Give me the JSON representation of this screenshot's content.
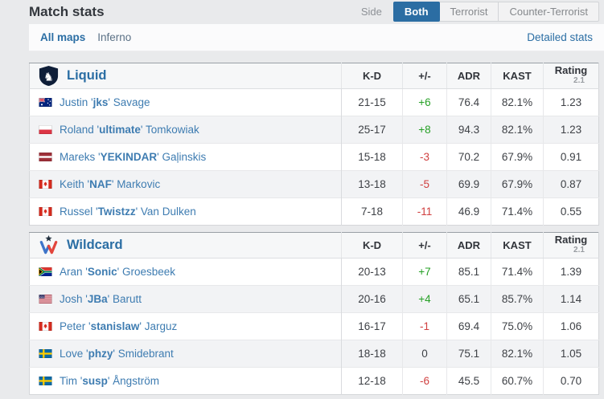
{
  "page": {
    "title": "Match stats"
  },
  "side_filter": {
    "label": "Side",
    "tabs": [
      {
        "label": "Both",
        "active": true
      },
      {
        "label": "Terrorist",
        "active": false
      },
      {
        "label": "Counter-Terrorist",
        "active": false
      }
    ]
  },
  "maps_bar": {
    "all_maps": "All maps",
    "map": "Inferno",
    "detailed": "Detailed stats"
  },
  "columns": {
    "kd": "K-D",
    "plusminus": "+/-",
    "adr": "ADR",
    "kast": "KAST",
    "rating": "Rating",
    "rating_version": "2.1"
  },
  "colors": {
    "accent_blue": "#2b6da3",
    "link_blue": "#2b6ea4",
    "player_link_blue": "#3e7cb1",
    "positive_green": "#26a026",
    "negative_red": "#d04040"
  },
  "teams": [
    {
      "name": "Liquid",
      "logo": "liquid",
      "players": [
        {
          "flag": "au",
          "prefix": "Justin '",
          "nick": "jks",
          "suffix": "' Savage",
          "kd": "21-15",
          "diff": "+6",
          "trend": "pos",
          "adr": "76.4",
          "kast": "82.1%",
          "rating": "1.23"
        },
        {
          "flag": "pl",
          "prefix": "Roland '",
          "nick": "ultimate",
          "suffix": "' Tomkowiak",
          "kd": "25-17",
          "diff": "+8",
          "trend": "pos",
          "adr": "94.3",
          "kast": "82.1%",
          "rating": "1.23"
        },
        {
          "flag": "lv",
          "prefix": "Mareks '",
          "nick": "YEKINDAR",
          "suffix": "' Gaļinskis",
          "kd": "15-18",
          "diff": "-3",
          "trend": "neg",
          "adr": "70.2",
          "kast": "67.9%",
          "rating": "0.91"
        },
        {
          "flag": "ca",
          "prefix": "Keith '",
          "nick": "NAF",
          "suffix": "' Markovic",
          "kd": "13-18",
          "diff": "-5",
          "trend": "neg",
          "adr": "69.9",
          "kast": "67.9%",
          "rating": "0.87"
        },
        {
          "flag": "ca",
          "prefix": "Russel '",
          "nick": "Twistzz",
          "suffix": "' Van Dulken",
          "kd": "7-18",
          "diff": "-11",
          "trend": "neg",
          "adr": "46.9",
          "kast": "71.4%",
          "rating": "0.55"
        }
      ]
    },
    {
      "name": "Wildcard",
      "logo": "wildcard",
      "players": [
        {
          "flag": "za",
          "prefix": "Aran '",
          "nick": "Sonic",
          "suffix": "' Groesbeek",
          "kd": "20-13",
          "diff": "+7",
          "trend": "pos",
          "adr": "85.1",
          "kast": "71.4%",
          "rating": "1.39"
        },
        {
          "flag": "us",
          "prefix": "Josh '",
          "nick": "JBa",
          "suffix": "' Barutt",
          "kd": "20-16",
          "diff": "+4",
          "trend": "pos",
          "adr": "65.1",
          "kast": "85.7%",
          "rating": "1.14"
        },
        {
          "flag": "ca",
          "prefix": "Peter '",
          "nick": "stanislaw",
          "suffix": "' Jarguz",
          "kd": "16-17",
          "diff": "-1",
          "trend": "neg",
          "adr": "69.4",
          "kast": "75.0%",
          "rating": "1.06"
        },
        {
          "flag": "se",
          "prefix": "Love '",
          "nick": "phzy",
          "suffix": "' Smidebrant",
          "kd": "18-18",
          "diff": "0",
          "trend": "zero",
          "adr": "75.1",
          "kast": "82.1%",
          "rating": "1.05"
        },
        {
          "flag": "se",
          "prefix": "Tim '",
          "nick": "susp",
          "suffix": "' Ångström",
          "kd": "12-18",
          "diff": "-6",
          "trend": "neg",
          "adr": "45.5",
          "kast": "60.7%",
          "rating": "0.70"
        }
      ]
    }
  ]
}
